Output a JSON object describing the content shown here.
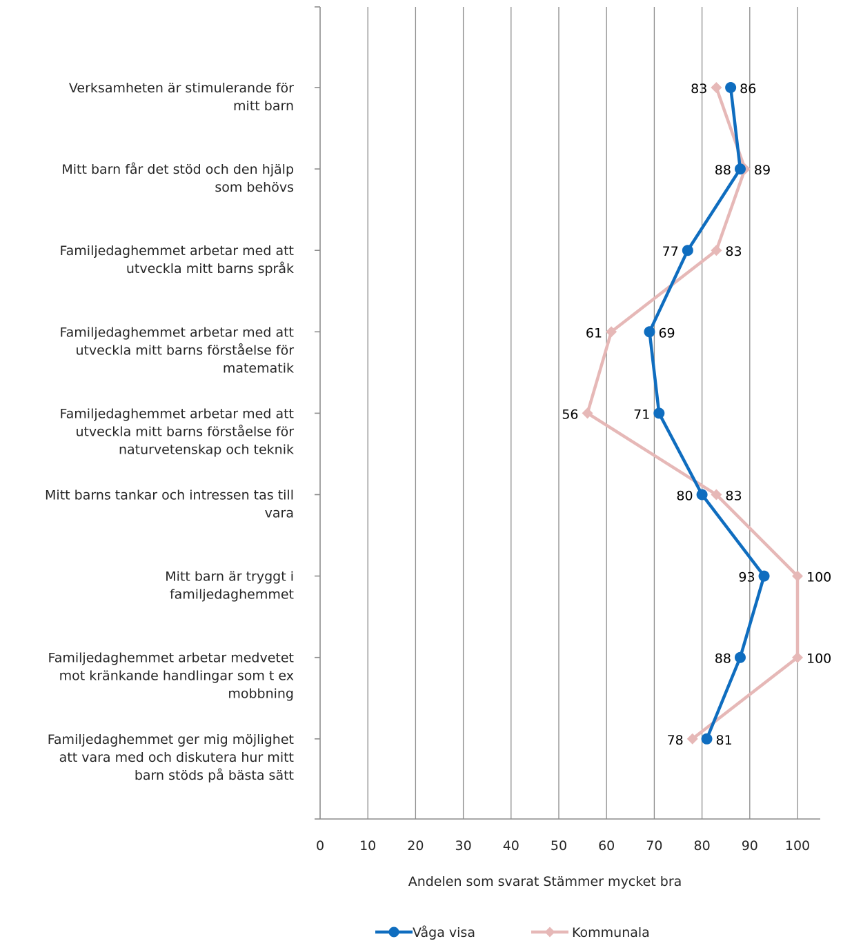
{
  "chart_data": {
    "type": "line",
    "orientation": "horizontal",
    "xlabel": "Andelen som svarat Stämmer mycket bra",
    "xlim": [
      0,
      100
    ],
    "xticks": [
      0,
      10,
      20,
      30,
      40,
      50,
      60,
      70,
      80,
      90,
      100
    ],
    "grid": "vertical",
    "legend_position": "bottom",
    "categories": [
      [
        "Verksamheten är stimulerande för",
        "mitt barn"
      ],
      [
        "Mitt barn får det stöd och den hjälp",
        "som behövs"
      ],
      [
        "Familjedaghemmet arbetar med att",
        "utveckla mitt barns språk"
      ],
      [
        "Familjedaghemmet arbetar med att",
        "utveckla mitt barns förståelse för",
        "matematik"
      ],
      [
        "Familjedaghemmet arbetar med att",
        "utveckla mitt barns förståelse för",
        "naturvetenskap och teknik"
      ],
      [
        "Mitt barns tankar och intressen tas till",
        "vara"
      ],
      [
        "Mitt barn är tryggt i",
        "familjedaghemmet"
      ],
      [
        "Familjedaghemmet arbetar medvetet",
        "mot kränkande handlingar som t ex",
        "mobbning"
      ],
      [
        "Familjedaghemmet ger mig möjlighet",
        "att vara med och diskutera hur mitt",
        "barn stöds på bästa sätt"
      ]
    ],
    "series": [
      {
        "name": "Våga visa",
        "color": "#0F6DBF",
        "marker": "circle",
        "values": [
          86,
          88,
          77,
          69,
          71,
          80,
          93,
          88,
          81
        ],
        "label_side": [
          "right",
          "left",
          "left",
          "right",
          "left",
          "left",
          "left",
          "left",
          "right"
        ]
      },
      {
        "name": "Kommunala",
        "color": "#E6B8B7",
        "marker": "diamond",
        "values": [
          83,
          89,
          83,
          61,
          56,
          83,
          100,
          100,
          78
        ],
        "label_side": [
          "left",
          "right",
          "right",
          "left",
          "left",
          "right",
          "right",
          "right",
          "left"
        ]
      }
    ]
  }
}
